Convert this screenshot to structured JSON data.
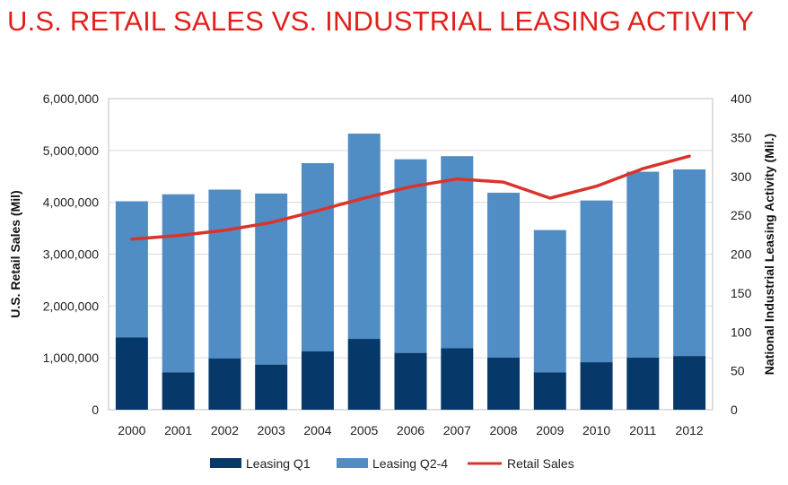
{
  "title": "U.S. RETAIL SALES VS. INDUSTRIAL LEASING ACTIVITY",
  "colors": {
    "title": "#e2201b",
    "leasing_q1": "#06386a",
    "leasing_q2_4": "#4f8dc4",
    "retail_sales": "#d9342c",
    "grid": "#d9d9d9"
  },
  "chart_data": {
    "type": "bar",
    "stacked": true,
    "categories": [
      "2000",
      "2001",
      "2002",
      "2003",
      "2004",
      "2005",
      "2006",
      "2007",
      "2008",
      "2009",
      "2010",
      "2011",
      "2012"
    ],
    "series": [
      {
        "name": "Leasing Q1",
        "axis": "right",
        "values": [
          93,
          48,
          66,
          58,
          75,
          91,
          73,
          79,
          67,
          48,
          61,
          67,
          69
        ]
      },
      {
        "name": "Leasing Q2-4",
        "axis": "right",
        "values": [
          175,
          229,
          217,
          220,
          242,
          264,
          249,
          247,
          212,
          183,
          208,
          239,
          240
        ]
      },
      {
        "name": "Retail Sales",
        "type": "line",
        "axis": "left",
        "values": [
          3290000,
          3360000,
          3460000,
          3610000,
          3840000,
          4080000,
          4300000,
          4450000,
          4390000,
          4080000,
          4310000,
          4650000,
          4890000
        ]
      }
    ],
    "left_axis": {
      "label": "U.S. Retail Sales (Mil)",
      "range": [
        0,
        6000000
      ],
      "ticks": [
        "0",
        "1,000,000",
        "2,000,000",
        "3,000,000",
        "4,000,000",
        "5,000,000",
        "6,000,000"
      ]
    },
    "right_axis": {
      "label": "National Industrial Leasing Activity (Mil.)",
      "range": [
        0,
        400
      ],
      "ticks": [
        "0",
        "50",
        "100",
        "150",
        "200",
        "250",
        "300",
        "350",
        "400"
      ]
    },
    "grid": true,
    "legend": "bottom"
  }
}
